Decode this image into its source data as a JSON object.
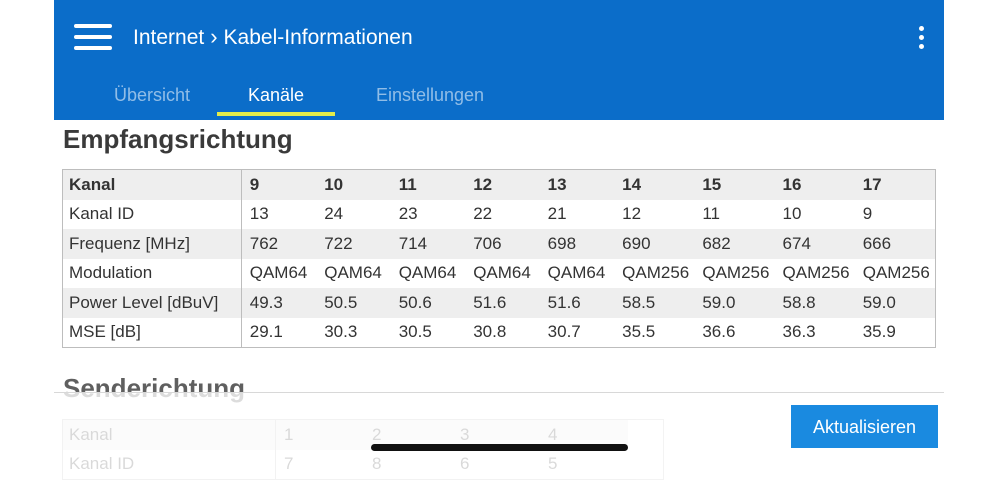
{
  "header": {
    "menu_icon": "hamburger-menu-icon",
    "breadcrumb": [
      "Internet",
      "Kabel-Informationen"
    ],
    "more_icon": "more-vertical-icon",
    "background": "#0b6dc9"
  },
  "tabs": [
    {
      "label": "Übersicht",
      "active": false
    },
    {
      "label": "Kanäle",
      "active": true
    },
    {
      "label": "Einstellungen",
      "active": false
    }
  ],
  "accent": "#e3ec4a",
  "downstream": {
    "title": "Empfangsrichtung",
    "columns_label": "Kanal",
    "channels": [
      "9",
      "10",
      "11",
      "12",
      "13",
      "14",
      "15",
      "16",
      "17"
    ],
    "rows": [
      {
        "label": "Kanal ID",
        "values": [
          "13",
          "24",
          "23",
          "22",
          "21",
          "12",
          "11",
          "10",
          "9"
        ]
      },
      {
        "label": "Frequenz [MHz]",
        "values": [
          "762",
          "722",
          "714",
          "706",
          "698",
          "690",
          "682",
          "674",
          "666"
        ]
      },
      {
        "label": "Modulation",
        "values": [
          "QAM64",
          "QAM64",
          "QAM64",
          "QAM64",
          "QAM64",
          "QAM256",
          "QAM256",
          "QAM256",
          "QAM256"
        ]
      },
      {
        "label": "Power Level [dBuV]",
        "values": [
          "49.3",
          "50.5",
          "50.6",
          "51.6",
          "51.6",
          "58.5",
          "59.0",
          "58.8",
          "59.0"
        ]
      },
      {
        "label": "MSE [dB]",
        "values": [
          "29.1",
          "30.3",
          "30.5",
          "30.8",
          "30.7",
          "35.5",
          "36.6",
          "36.3",
          "35.9"
        ]
      }
    ]
  },
  "upstream": {
    "title": "Senderichtung",
    "columns_label": "Kanal",
    "channels": [
      "1",
      "2",
      "3",
      "4"
    ],
    "rows": [
      {
        "label": "Kanal ID",
        "values": [
          "7",
          "8",
          "6",
          "5"
        ]
      }
    ]
  },
  "refresh_button": {
    "label": "Aktualisieren",
    "color": "#1a8ae0"
  }
}
